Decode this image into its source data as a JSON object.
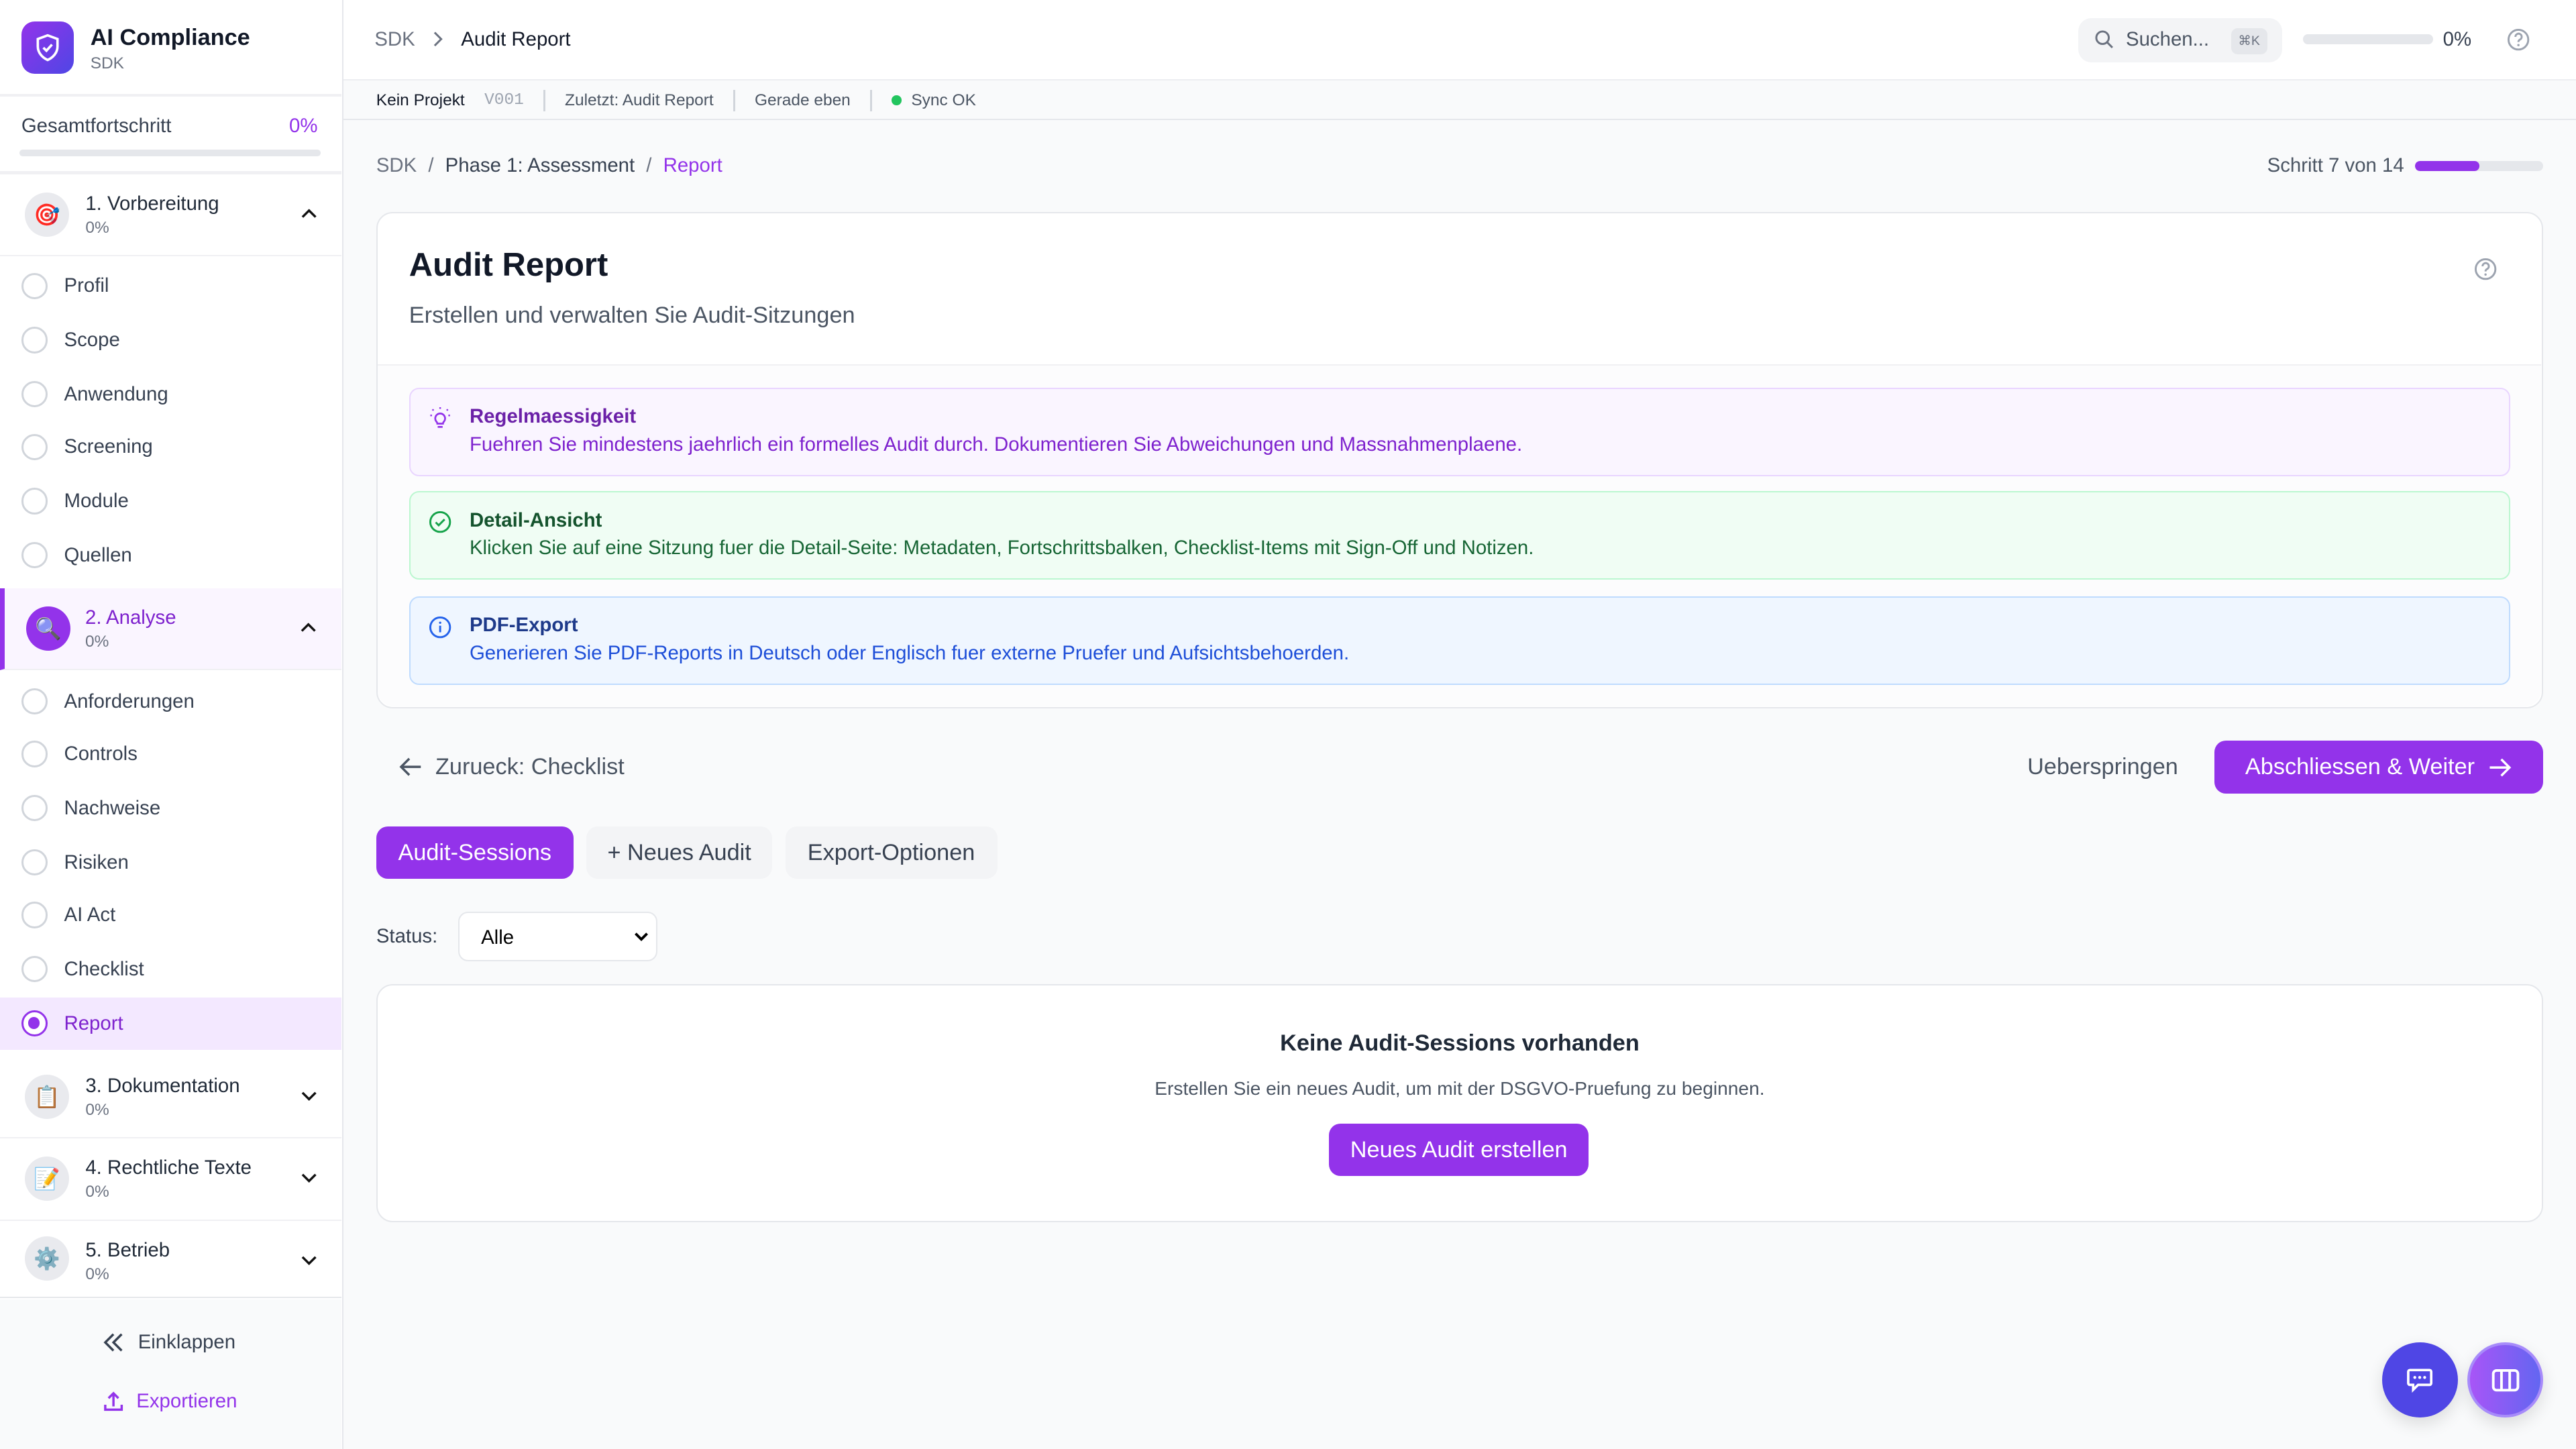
{
  "app": {
    "title": "AI Compliance",
    "subtitle": "SDK"
  },
  "colors": {
    "accent": "#9333ea",
    "indigo": "#4f46e5",
    "success": "#22c55e"
  },
  "sidebar": {
    "progress_label": "Gesamtfortschritt",
    "progress_value": "0%",
    "progress": 0,
    "sections": [
      {
        "label": "1. Vorbereitung",
        "progress": "0%",
        "icon": "target-icon",
        "expanded": true,
        "items": [
          {
            "label": "Profil"
          },
          {
            "label": "Scope"
          },
          {
            "label": "Anwendung"
          },
          {
            "label": "Screening"
          },
          {
            "label": "Module"
          },
          {
            "label": "Quellen"
          }
        ]
      },
      {
        "label": "2. Analyse",
        "progress": "0%",
        "icon": "magnifier-icon",
        "expanded": true,
        "items": [
          {
            "label": "Anforderungen"
          },
          {
            "label": "Controls"
          },
          {
            "label": "Nachweise"
          },
          {
            "label": "Risiken"
          },
          {
            "label": "AI Act"
          },
          {
            "label": "Checklist"
          },
          {
            "label": "Report",
            "active": true
          }
        ]
      },
      {
        "label": "3. Dokumentation",
        "progress": "0%",
        "icon": "clipboard-icon",
        "expanded": false
      },
      {
        "label": "4. Rechtliche Texte",
        "progress": "0%",
        "icon": "memo-icon",
        "expanded": false
      },
      {
        "label": "5. Betrieb",
        "progress": "0%",
        "icon": "gear-icon",
        "expanded": false
      }
    ],
    "collapse_label": "Einklappen",
    "export_label": "Exportieren"
  },
  "topbar": {
    "breadcrumb": [
      "SDK",
      "Audit Report"
    ],
    "search_placeholder": "Suchen...",
    "search_shortcut": "⌘K",
    "progress_value": "0%",
    "progress": 0
  },
  "statusbar": {
    "project": "Kein Projekt",
    "version": "V001",
    "last": "Zuletzt: Audit Report",
    "time": "Gerade eben",
    "sync": "Sync OK"
  },
  "main": {
    "breadcrumb": [
      "SDK",
      "Phase 1: Assessment",
      "Report"
    ],
    "step_label": "Schritt 7 von 14",
    "step_progress": 0.5,
    "title": "Audit Report",
    "description": "Erstellen und verwalten Sie Audit-Sitzungen",
    "infos": [
      {
        "title": "Regelmaessigkeit",
        "text": "Fuehren Sie mindestens jaehrlich ein formelles Audit durch. Dokumentieren Sie Abweichungen und Massnahmenplaene.",
        "icon": "lightbulb-icon"
      },
      {
        "title": "Detail-Ansicht",
        "text": "Klicken Sie auf eine Sitzung fuer die Detail-Seite: Metadaten, Fortschrittsbalken, Checklist-Items mit Sign-Off und Notizen.",
        "icon": "check-circle-icon"
      },
      {
        "title": "PDF-Export",
        "text": "Generieren Sie PDF-Reports in Deutsch oder Englisch fuer externe Pruefer und Aufsichtsbehoerden.",
        "icon": "info-icon"
      }
    ],
    "back_label": "Zurueck: Checklist",
    "skip_label": "Ueberspringen",
    "next_label": "Abschliessen & Weiter",
    "tabs": [
      {
        "label": "Audit-Sessions",
        "active": true
      },
      {
        "label": "+ Neues Audit"
      },
      {
        "label": "Export-Optionen"
      }
    ],
    "filter_label": "Status:",
    "filter_value": "Alle",
    "empty": {
      "title": "Keine Audit-Sessions vorhanden",
      "text": "Erstellen Sie ein neues Audit, um mit der DSGVO-Pruefung zu beginnen.",
      "button": "Neues Audit erstellen"
    }
  }
}
